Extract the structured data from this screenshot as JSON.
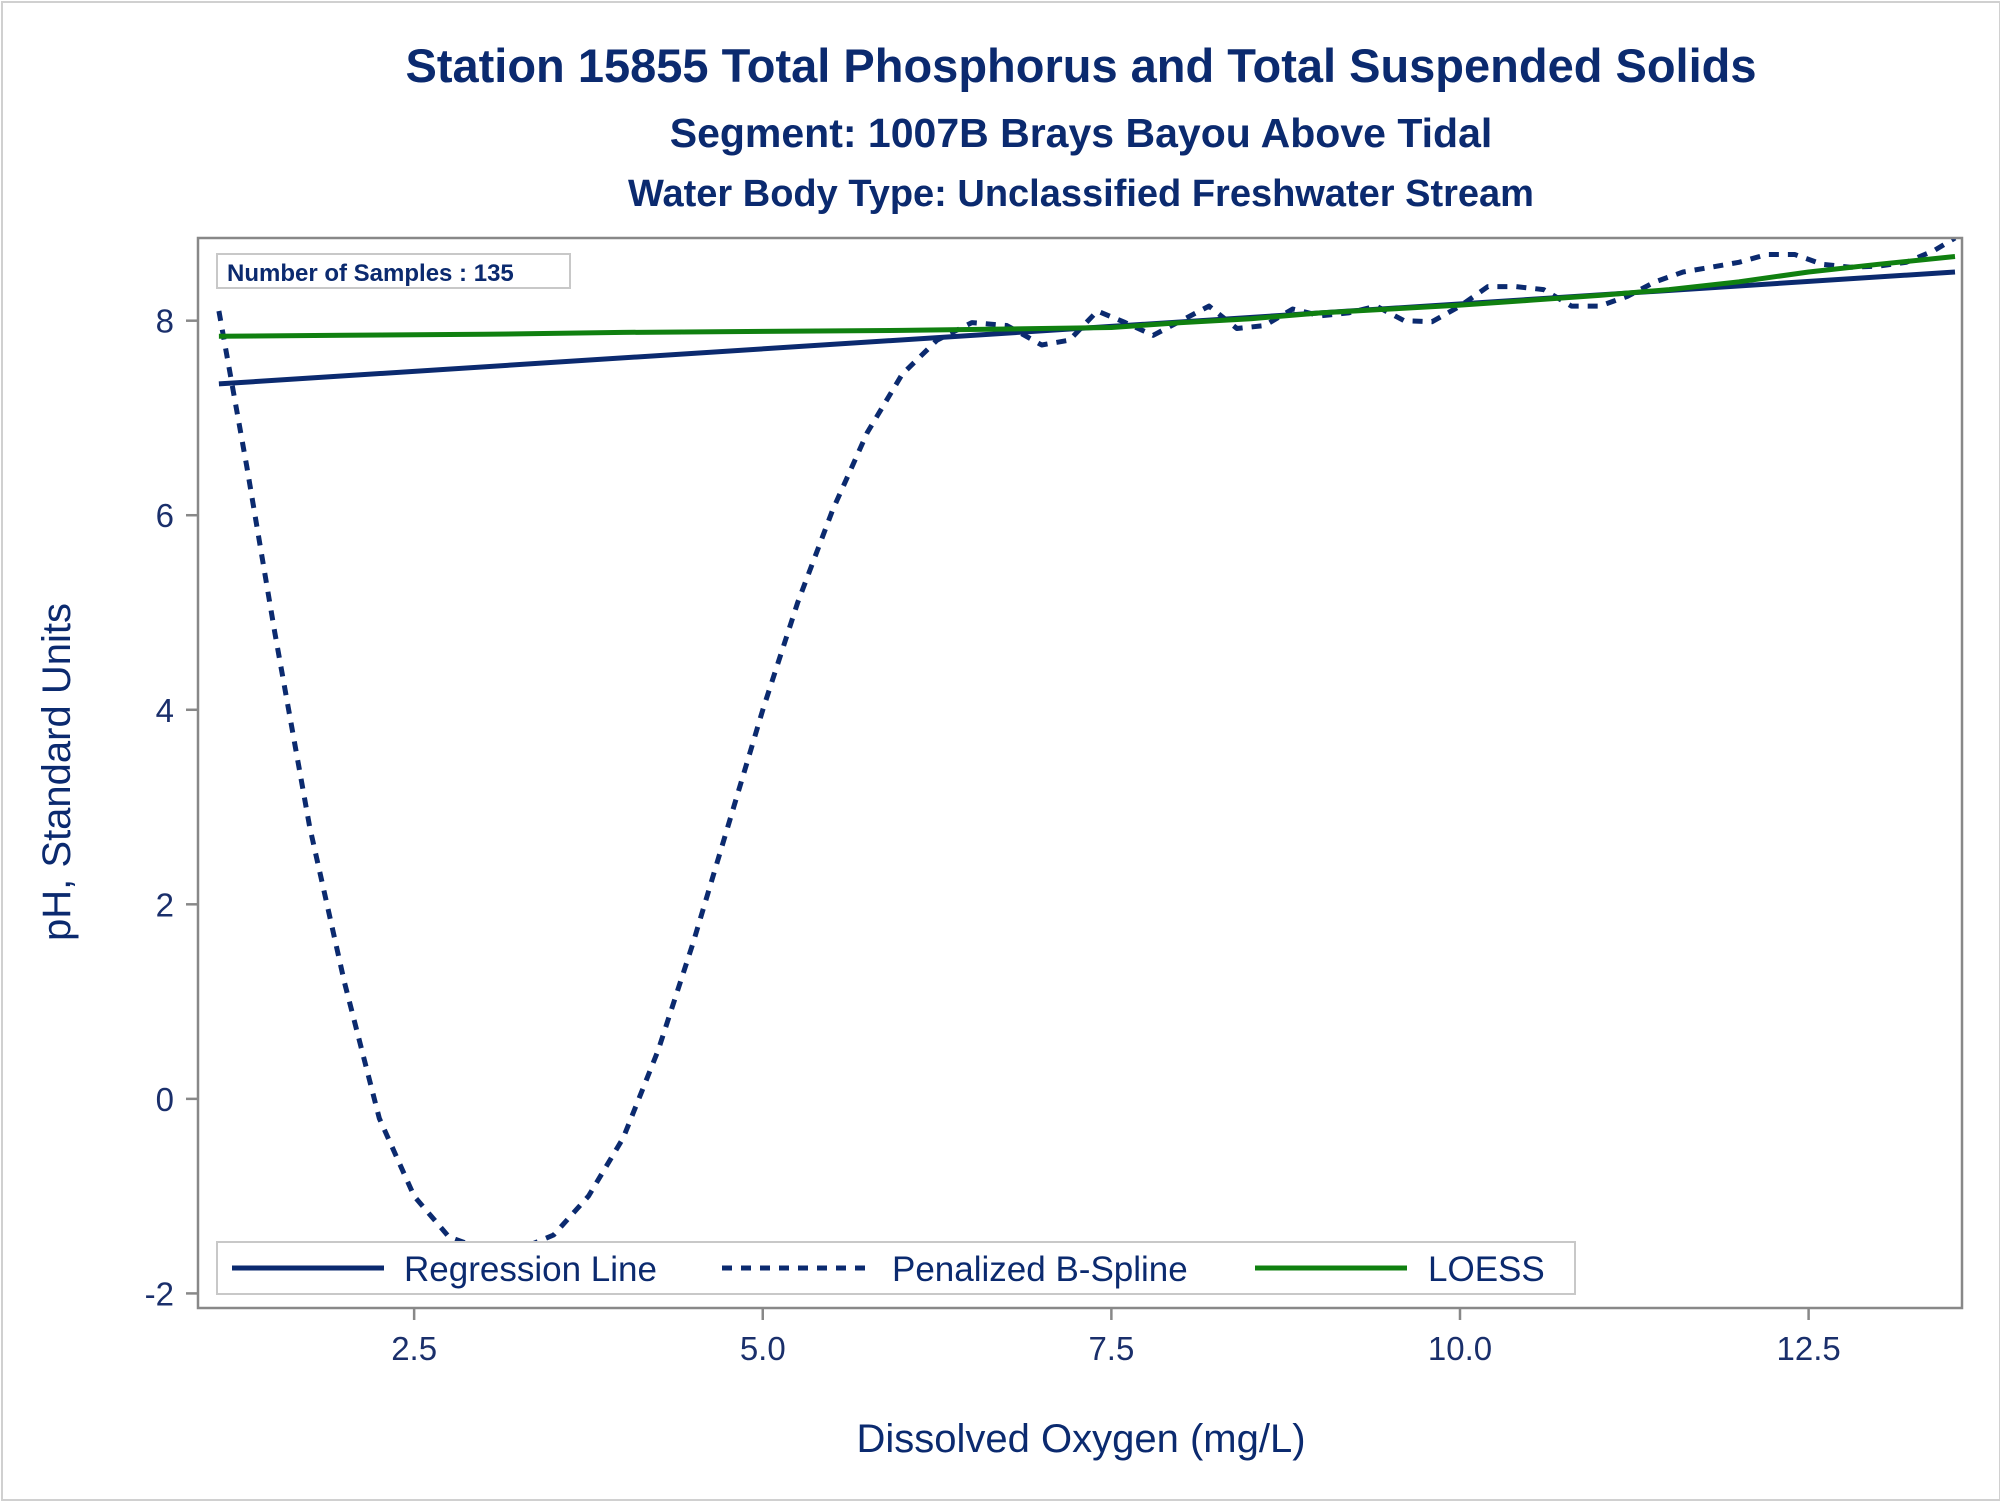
{
  "titles": {
    "line1": "Station 15855  Total Phosphorus and Total Suspended Solids",
    "line2": "Segment: 1007B  Brays Bayou Above Tidal",
    "line3": "Water Body Type: Unclassified Freshwater Stream"
  },
  "inset": {
    "text": "Number of Samples : 135"
  },
  "colors": {
    "regression": "#0b2a6f",
    "spline": "#0b2a6f",
    "loess": "#108010",
    "text": "#0b2a6f",
    "frame": "#888888"
  },
  "chart_data": {
    "type": "line",
    "xlabel": "Dissolved Oxygen (mg/L)",
    "ylabel": "pH, Standard Units",
    "xlim": [
      0.95,
      13.6
    ],
    "ylim": [
      -2.15,
      8.85
    ],
    "xticks": [
      2.5,
      5.0,
      7.5,
      10.0,
      12.5
    ],
    "xtick_labels": [
      "2.5",
      "5.0",
      "7.5",
      "10.0",
      "12.5"
    ],
    "yticks": [
      -2,
      0,
      2,
      4,
      6,
      8
    ],
    "ytick_labels": [
      "-2",
      "0",
      "2",
      "4",
      "6",
      "8"
    ],
    "grid": false,
    "legend_position": "bottom-left inside",
    "series": [
      {
        "name": "Regression Line",
        "style": "solid",
        "x": [
          1.1,
          13.55
        ],
        "y": [
          7.35,
          8.5
        ]
      },
      {
        "name": "Penalized B-Spline",
        "style": "dashed",
        "x": [
          1.1,
          1.3,
          1.5,
          1.75,
          2.0,
          2.25,
          2.5,
          2.75,
          3.0,
          3.25,
          3.5,
          3.75,
          4.0,
          4.25,
          4.5,
          4.75,
          5.0,
          5.25,
          5.5,
          5.75,
          6.0,
          6.25,
          6.5,
          6.75,
          7.0,
          7.2,
          7.4,
          7.6,
          7.8,
          8.0,
          8.2,
          8.4,
          8.6,
          8.8,
          9.0,
          9.2,
          9.4,
          9.6,
          9.8,
          10.0,
          10.2,
          10.4,
          10.6,
          10.8,
          11.0,
          11.2,
          11.4,
          11.6,
          11.8,
          12.0,
          12.2,
          12.4,
          12.6,
          12.8,
          13.0,
          13.2,
          13.4,
          13.55
        ],
        "y": [
          8.1,
          6.5,
          4.8,
          2.8,
          1.2,
          -0.2,
          -1.0,
          -1.42,
          -1.55,
          -1.55,
          -1.4,
          -1.0,
          -0.4,
          0.5,
          1.6,
          2.8,
          4.0,
          5.1,
          6.05,
          6.85,
          7.45,
          7.8,
          7.98,
          7.95,
          7.75,
          7.8,
          8.1,
          7.98,
          7.85,
          8.0,
          8.15,
          7.92,
          7.95,
          8.12,
          8.05,
          8.08,
          8.15,
          8.0,
          7.99,
          8.15,
          8.35,
          8.35,
          8.32,
          8.15,
          8.15,
          8.25,
          8.4,
          8.5,
          8.55,
          8.6,
          8.68,
          8.68,
          8.58,
          8.55,
          8.56,
          8.6,
          8.72,
          8.85
        ]
      },
      {
        "name": "LOESS",
        "style": "solid",
        "x": [
          1.1,
          2.0,
          3.0,
          4.0,
          5.0,
          6.0,
          7.0,
          7.5,
          8.0,
          8.5,
          9.0,
          9.5,
          10.0,
          10.5,
          11.0,
          11.5,
          12.0,
          12.5,
          13.0,
          13.55
        ],
        "y": [
          7.84,
          7.85,
          7.86,
          7.88,
          7.89,
          7.9,
          7.92,
          7.93,
          7.98,
          8.02,
          8.08,
          8.12,
          8.16,
          8.21,
          8.26,
          8.32,
          8.4,
          8.5,
          8.58,
          8.66
        ]
      }
    ]
  }
}
